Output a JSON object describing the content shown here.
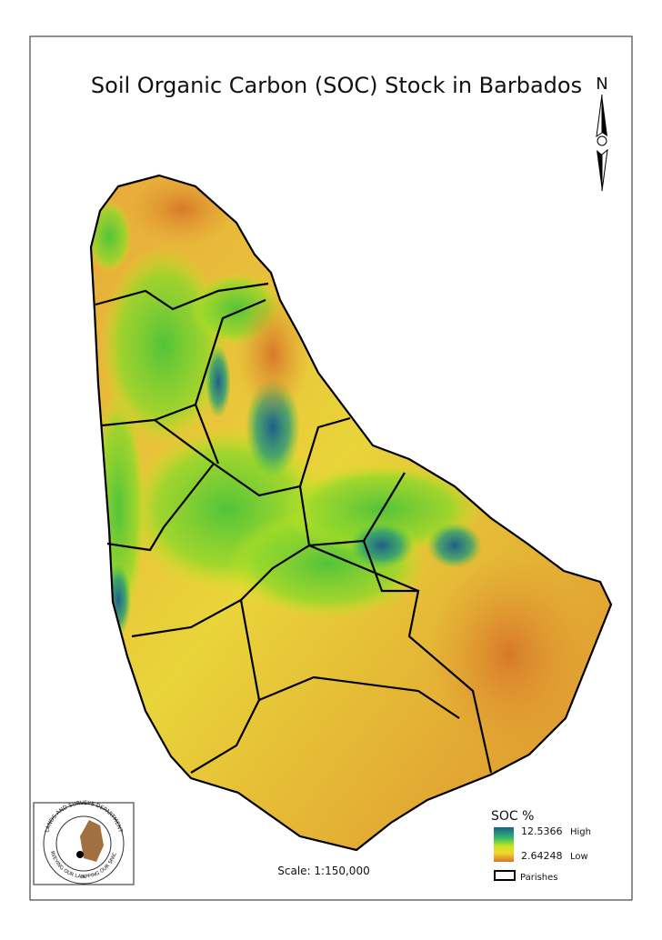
{
  "title": "Soil Organic Carbon (SOC) Stock in Barbados",
  "north": "N",
  "legend": {
    "title": "SOC %",
    "high_value": "12.5366",
    "high_label": "High",
    "low_value": "2.64248",
    "low_label": "Low",
    "parishes": "Parishes"
  },
  "scale": "Scale: 1:150,000",
  "logo": {
    "top": "LANDS AND SURVEYS DEPARTMENT",
    "bottom_left": "SURVEYING OUR LANDS",
    "bottom_right": "MAPPING OUR SPACES"
  }
}
